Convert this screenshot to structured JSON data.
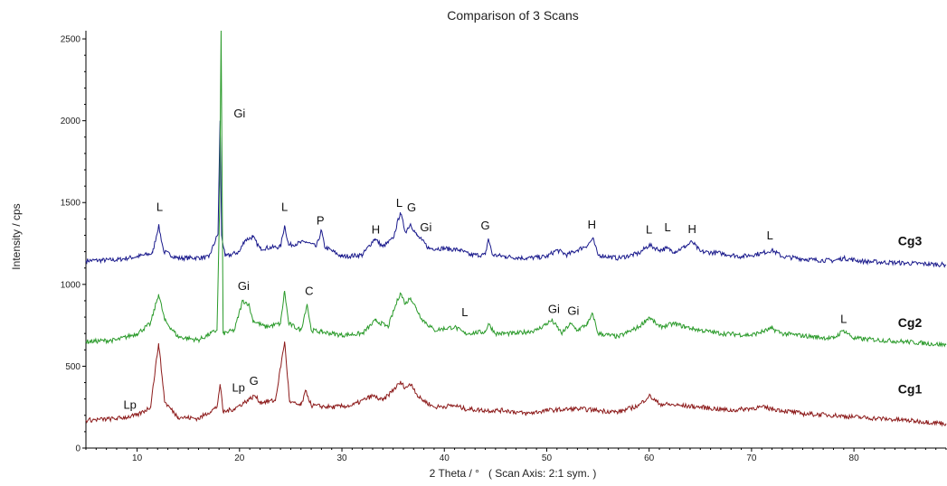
{
  "chart_data": {
    "type": "line",
    "title": "Comparison of 3 Scans",
    "xlabel": "2 Theta / °   ( Scan Axis: 2:1 sym. )",
    "ylabel": "Intensity / cps",
    "xlim": [
      5,
      89
    ],
    "ylim": [
      0,
      2550
    ],
    "x_ticks": [
      10,
      20,
      30,
      40,
      50,
      60,
      70,
      80
    ],
    "y_ticks": [
      0,
      500,
      1000,
      1500,
      2000,
      2500
    ],
    "grid": false,
    "series": [
      {
        "name": "Cg3",
        "color": "#1a1a8c",
        "baseline": [
          [
            5,
            1145
          ],
          [
            8,
            1150
          ],
          [
            10,
            1170
          ],
          [
            11.5,
            1190
          ],
          [
            12.1,
            1360
          ],
          [
            12.6,
            1200
          ],
          [
            14,
            1160
          ],
          [
            17,
            1165
          ],
          [
            17.9,
            1310
          ],
          [
            18.1,
            2000
          ],
          [
            18.25,
            1300
          ],
          [
            18.6,
            1170
          ],
          [
            20,
            1200
          ],
          [
            20.5,
            1270
          ],
          [
            21.3,
            1290
          ],
          [
            22,
            1220
          ],
          [
            24,
            1230
          ],
          [
            24.4,
            1360
          ],
          [
            24.8,
            1240
          ],
          [
            26.5,
            1260
          ],
          [
            27.5,
            1230
          ],
          [
            28,
            1330
          ],
          [
            28.3,
            1230
          ],
          [
            30,
            1170
          ],
          [
            32,
            1180
          ],
          [
            33.2,
            1280
          ],
          [
            34,
            1230
          ],
          [
            35,
            1280
          ],
          [
            35.7,
            1440
          ],
          [
            36.2,
            1320
          ],
          [
            36.7,
            1370
          ],
          [
            37.3,
            1300
          ],
          [
            37.8,
            1270
          ],
          [
            38.5,
            1220
          ],
          [
            40,
            1220
          ],
          [
            41.5,
            1210
          ],
          [
            42.5,
            1180
          ],
          [
            44,
            1180
          ],
          [
            44.3,
            1280
          ],
          [
            44.7,
            1180
          ],
          [
            46,
            1170
          ],
          [
            48,
            1160
          ],
          [
            50,
            1170
          ],
          [
            51,
            1210
          ],
          [
            52,
            1180
          ],
          [
            53,
            1210
          ],
          [
            54,
            1240
          ],
          [
            54.5,
            1280
          ],
          [
            55,
            1180
          ],
          [
            57,
            1160
          ],
          [
            59,
            1190
          ],
          [
            60,
            1240
          ],
          [
            61,
            1210
          ],
          [
            61.7,
            1220
          ],
          [
            62.5,
            1200
          ],
          [
            63.5,
            1230
          ],
          [
            64.2,
            1260
          ],
          [
            65,
            1200
          ],
          [
            67,
            1190
          ],
          [
            69,
            1170
          ],
          [
            71,
            1190
          ],
          [
            72,
            1210
          ],
          [
            73,
            1170
          ],
          [
            76,
            1150
          ],
          [
            78,
            1145
          ],
          [
            79,
            1160
          ],
          [
            81,
            1140
          ],
          [
            85,
            1130
          ],
          [
            89,
            1120
          ]
        ]
      },
      {
        "name": "Cg2",
        "color": "#2a9a2a",
        "baseline": [
          [
            5,
            650
          ],
          [
            8,
            660
          ],
          [
            10,
            700
          ],
          [
            11.3,
            760
          ],
          [
            12.1,
            940
          ],
          [
            12.7,
            780
          ],
          [
            14,
            680
          ],
          [
            16,
            660
          ],
          [
            17.8,
            720
          ],
          [
            18.05,
            1450
          ],
          [
            18.2,
            2550
          ],
          [
            18.4,
            700
          ],
          [
            19.5,
            720
          ],
          [
            20.3,
            900
          ],
          [
            20.9,
            880
          ],
          [
            21.3,
            780
          ],
          [
            22.5,
            740
          ],
          [
            24,
            760
          ],
          [
            24.4,
            960
          ],
          [
            24.8,
            760
          ],
          [
            26,
            720
          ],
          [
            26.6,
            880
          ],
          [
            27,
            720
          ],
          [
            28,
            710
          ],
          [
            30,
            690
          ],
          [
            32,
            700
          ],
          [
            33.3,
            780
          ],
          [
            34.5,
            740
          ],
          [
            35.7,
            950
          ],
          [
            36.2,
            880
          ],
          [
            36.7,
            920
          ],
          [
            37.2,
            860
          ],
          [
            37.8,
            790
          ],
          [
            39,
            720
          ],
          [
            41,
            740
          ],
          [
            42,
            700
          ],
          [
            44,
            710
          ],
          [
            44.3,
            760
          ],
          [
            45,
            700
          ],
          [
            47,
            700
          ],
          [
            49,
            720
          ],
          [
            50.5,
            780
          ],
          [
            51.5,
            700
          ],
          [
            52.3,
            760
          ],
          [
            53,
            720
          ],
          [
            54,
            760
          ],
          [
            54.5,
            820
          ],
          [
            55,
            700
          ],
          [
            57,
            680
          ],
          [
            59,
            740
          ],
          [
            60,
            800
          ],
          [
            61,
            740
          ],
          [
            62.5,
            760
          ],
          [
            63.5,
            740
          ],
          [
            65,
            720
          ],
          [
            67,
            700
          ],
          [
            70,
            690
          ],
          [
            72,
            730
          ],
          [
            73,
            700
          ],
          [
            76,
            680
          ],
          [
            78,
            670
          ],
          [
            79,
            720
          ],
          [
            80,
            670
          ],
          [
            85,
            650
          ],
          [
            89,
            630
          ]
        ]
      },
      {
        "name": "Cg1",
        "color": "#8c1a1a",
        "baseline": [
          [
            5,
            170
          ],
          [
            8,
            180
          ],
          [
            10,
            200
          ],
          [
            11.3,
            250
          ],
          [
            12.1,
            640
          ],
          [
            12.7,
            280
          ],
          [
            14,
            190
          ],
          [
            16,
            180
          ],
          [
            17.8,
            250
          ],
          [
            18.1,
            390
          ],
          [
            18.4,
            220
          ],
          [
            19.5,
            240
          ],
          [
            21,
            300
          ],
          [
            21.5,
            320
          ],
          [
            22,
            280
          ],
          [
            23.5,
            290
          ],
          [
            24.4,
            650
          ],
          [
            24.9,
            280
          ],
          [
            26,
            260
          ],
          [
            26.5,
            350
          ],
          [
            27,
            260
          ],
          [
            29,
            250
          ],
          [
            31,
            260
          ],
          [
            33,
            320
          ],
          [
            34,
            290
          ],
          [
            35.7,
            400
          ],
          [
            36.2,
            370
          ],
          [
            36.8,
            390
          ],
          [
            37.5,
            310
          ],
          [
            39,
            250
          ],
          [
            41,
            260
          ],
          [
            42,
            240
          ],
          [
            44,
            230
          ],
          [
            46,
            230
          ],
          [
            48,
            210
          ],
          [
            50,
            230
          ],
          [
            53,
            240
          ],
          [
            55,
            230
          ],
          [
            57,
            220
          ],
          [
            59,
            260
          ],
          [
            60,
            320
          ],
          [
            61,
            270
          ],
          [
            63,
            260
          ],
          [
            65,
            250
          ],
          [
            68,
            230
          ],
          [
            71,
            250
          ],
          [
            72,
            240
          ],
          [
            75,
            210
          ],
          [
            78,
            200
          ],
          [
            80,
            190
          ],
          [
            85,
            170
          ],
          [
            89,
            150
          ]
        ]
      }
    ],
    "series_labels": [
      {
        "text": "Cg3",
        "x": 84.3,
        "y": 1240
      },
      {
        "text": "Cg2",
        "x": 84.3,
        "y": 740
      },
      {
        "text": "Cg1",
        "x": 84.3,
        "y": 335
      }
    ],
    "annotations": [
      {
        "text": "Gi",
        "x": 20.0,
        "y": 2020
      },
      {
        "text": "L",
        "x": 12.2,
        "y": 1450
      },
      {
        "text": "L",
        "x": 24.4,
        "y": 1450
      },
      {
        "text": "P",
        "x": 27.9,
        "y": 1365
      },
      {
        "text": "H",
        "x": 33.3,
        "y": 1310
      },
      {
        "text": "L",
        "x": 35.6,
        "y": 1475
      },
      {
        "text": "G",
        "x": 36.8,
        "y": 1445
      },
      {
        "text": "Gi",
        "x": 38.2,
        "y": 1325
      },
      {
        "text": "G",
        "x": 44.0,
        "y": 1335
      },
      {
        "text": "H",
        "x": 54.4,
        "y": 1340
      },
      {
        "text": "L",
        "x": 60.0,
        "y": 1310
      },
      {
        "text": "L",
        "x": 61.8,
        "y": 1325
      },
      {
        "text": "H",
        "x": 64.2,
        "y": 1315
      },
      {
        "text": "L",
        "x": 71.8,
        "y": 1275
      },
      {
        "text": "Gi",
        "x": 20.4,
        "y": 965
      },
      {
        "text": "C",
        "x": 26.8,
        "y": 935
      },
      {
        "text": "L",
        "x": 42.0,
        "y": 805
      },
      {
        "text": "Gi",
        "x": 50.7,
        "y": 825
      },
      {
        "text": "Gi",
        "x": 52.6,
        "y": 815
      },
      {
        "text": "L",
        "x": 79.0,
        "y": 765
      },
      {
        "text": "Lp",
        "x": 9.3,
        "y": 240
      },
      {
        "text": "Lp",
        "x": 19.9,
        "y": 345
      },
      {
        "text": "G",
        "x": 21.4,
        "y": 385
      }
    ]
  }
}
